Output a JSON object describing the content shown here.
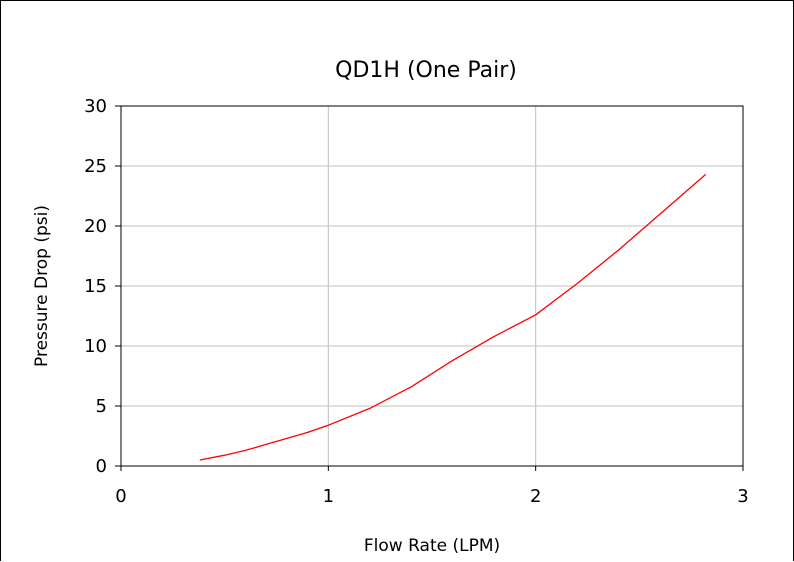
{
  "chart_data": {
    "type": "line",
    "title": "QD1H  (One Pair)",
    "xlabel": "Flow Rate (LPM)",
    "ylabel": "Pressure Drop (psi)",
    "xlim": [
      0,
      3
    ],
    "ylim": [
      0,
      30
    ],
    "xticks": [
      0,
      1,
      2,
      3
    ],
    "yticks": [
      0,
      5,
      10,
      15,
      20,
      25,
      30
    ],
    "grid": true,
    "series": [
      {
        "color": "#ff0000",
        "x": [
          0.38,
          0.5,
          0.6,
          0.7,
          0.8,
          0.9,
          1.0,
          1.2,
          1.4,
          1.6,
          1.8,
          2.0,
          2.2,
          2.4,
          2.6,
          2.82
        ],
        "y": [
          0.5,
          0.9,
          1.3,
          1.8,
          2.3,
          2.8,
          3.4,
          4.8,
          6.6,
          8.8,
          10.8,
          12.6,
          15.2,
          18.0,
          21.0,
          24.3
        ]
      }
    ]
  }
}
